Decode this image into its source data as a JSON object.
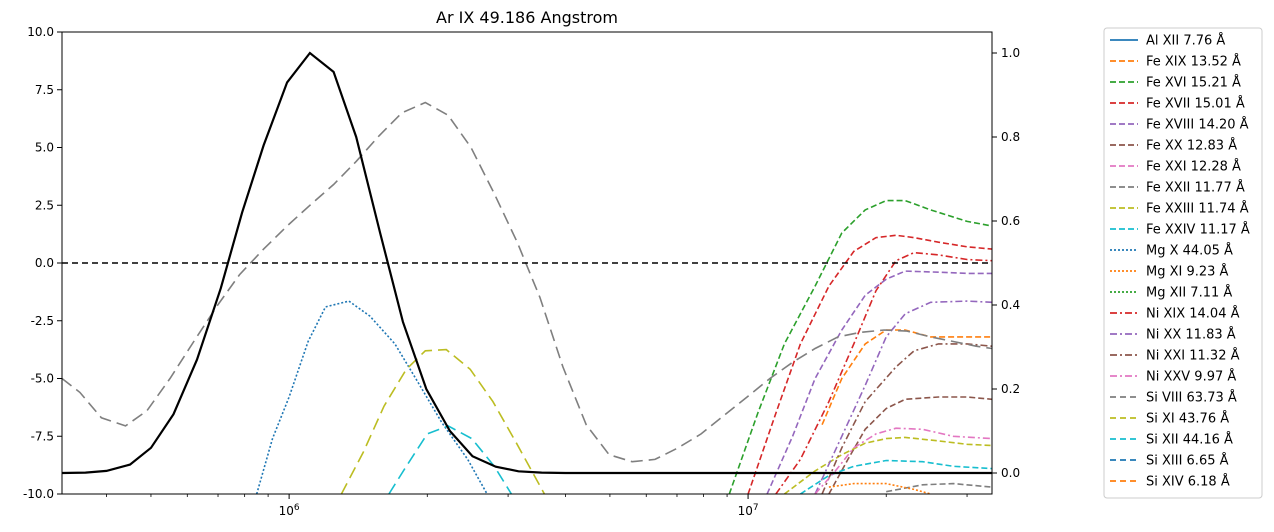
{
  "chart_data": {
    "type": "line",
    "title": "Ar IX 49.186 Angstrom",
    "xscale": "log",
    "xlim": [
      320000,
      34000000
    ],
    "x_ticks": [
      {
        "v": 1000000,
        "label": "10^6"
      },
      {
        "v": 10000000,
        "label": "10^7"
      }
    ],
    "left_axis": {
      "ylim": [
        -10,
        10
      ],
      "ticks": [
        "-10.0",
        "-7.5",
        "-5.0",
        "-2.5",
        "0.0",
        "2.5",
        "5.0",
        "7.5",
        "10.0"
      ]
    },
    "right_axis": {
      "ylim": [
        -0.05,
        1.05
      ],
      "ticks": [
        "0.0",
        "0.2",
        "0.4",
        "0.6",
        "0.8",
        "1.0"
      ]
    },
    "zero_line": {
      "y": 0,
      "style": "dashed",
      "color": "#000000"
    },
    "main_curve": {
      "axis": "right",
      "color": "#000000",
      "points": [
        [
          320000,
          0.0
        ],
        [
          360000,
          0.001
        ],
        [
          400000,
          0.005
        ],
        [
          450000,
          0.02
        ],
        [
          500000,
          0.06
        ],
        [
          560000,
          0.14
        ],
        [
          630000,
          0.27
        ],
        [
          710000,
          0.44
        ],
        [
          790000,
          0.62
        ],
        [
          880000,
          0.78
        ],
        [
          990000,
          0.93
        ],
        [
          1110000,
          1.0
        ],
        [
          1250000,
          0.955
        ],
        [
          1400000,
          0.8
        ],
        [
          1580000,
          0.57
        ],
        [
          1770000,
          0.36
        ],
        [
          1990000,
          0.2
        ],
        [
          2240000,
          0.1
        ],
        [
          2510000,
          0.04
        ],
        [
          2820000,
          0.015
        ],
        [
          3160000,
          0.004
        ],
        [
          3550000,
          0.001
        ],
        [
          4000000,
          0.0
        ],
        [
          34000000,
          0.0
        ]
      ]
    },
    "series": [
      {
        "name": "Al XII 7.76 Å",
        "color": "#1f77b4",
        "dash": "solid",
        "points": []
      },
      {
        "name": "Fe XIX 13.52 Å",
        "color": "#ff7f0e",
        "dash": "dashed",
        "points": [
          [
            14500000,
            -7.0
          ],
          [
            16000000,
            -5.0
          ],
          [
            18000000,
            -3.5
          ],
          [
            20000000,
            -2.9
          ],
          [
            22000000,
            -2.9
          ],
          [
            25000000,
            -3.2
          ],
          [
            30000000,
            -3.2
          ],
          [
            34000000,
            -3.2
          ]
        ]
      },
      {
        "name": "Fe XVI 15.21 Å",
        "color": "#2ca02c",
        "dash": "dashed",
        "points": [
          [
            9100000,
            -10.0
          ],
          [
            10500000,
            -6.5
          ],
          [
            12000000,
            -3.5
          ],
          [
            14000000,
            -1.0
          ],
          [
            16000000,
            1.3
          ],
          [
            18000000,
            2.3
          ],
          [
            20000000,
            2.7
          ],
          [
            22000000,
            2.7
          ],
          [
            25000000,
            2.3
          ],
          [
            30000000,
            1.8
          ],
          [
            34000000,
            1.6
          ]
        ]
      },
      {
        "name": "Fe XVII 15.01 Å",
        "color": "#d62728",
        "dash": "dashed",
        "points": [
          [
            10000000,
            -10.0
          ],
          [
            11500000,
            -6.5
          ],
          [
            13000000,
            -3.5
          ],
          [
            15000000,
            -1.0
          ],
          [
            17000000,
            0.5
          ],
          [
            19000000,
            1.1
          ],
          [
            21000000,
            1.2
          ],
          [
            23000000,
            1.1
          ],
          [
            26000000,
            0.9
          ],
          [
            30000000,
            0.7
          ],
          [
            34000000,
            0.6
          ]
        ]
      },
      {
        "name": "Fe XVIII 14.20 Å",
        "color": "#9467bd",
        "dash": "dashed",
        "points": [
          [
            11000000,
            -10.0
          ],
          [
            12500000,
            -7.5
          ],
          [
            14000000,
            -5.0
          ],
          [
            16000000,
            -2.9
          ],
          [
            18000000,
            -1.4
          ],
          [
            20000000,
            -0.7
          ],
          [
            22000000,
            -0.35
          ],
          [
            26000000,
            -0.4
          ],
          [
            30000000,
            -0.45
          ],
          [
            34000000,
            -0.45
          ]
        ]
      },
      {
        "name": "Fe XX 12.83 Å",
        "color": "#8c564b",
        "dash": "dashed",
        "points": [
          [
            15000000,
            -10.0
          ],
          [
            16500000,
            -8.5
          ],
          [
            18000000,
            -7.2
          ],
          [
            20000000,
            -6.3
          ],
          [
            22000000,
            -5.9
          ],
          [
            26000000,
            -5.8
          ],
          [
            30000000,
            -5.8
          ],
          [
            34000000,
            -5.9
          ]
        ]
      },
      {
        "name": "Fe XXI 12.28 Å",
        "color": "#e377c2",
        "dash": "dashed",
        "points": []
      },
      {
        "name": "Fe XXII 11.77 Å",
        "color": "#7f7f7f",
        "dash": "dashed",
        "points": [
          [
            20000000,
            -9.9
          ],
          [
            24000000,
            -9.6
          ],
          [
            28000000,
            -9.55
          ],
          [
            34000000,
            -9.7
          ]
        ]
      },
      {
        "name": "Fe XXIII 11.74 Å",
        "color": "#bcbd22",
        "dash": "dashed",
        "points": [
          [
            12000000,
            -10.0
          ],
          [
            14000000,
            -9.0
          ],
          [
            16000000,
            -8.3
          ],
          [
            18000000,
            -7.8
          ],
          [
            20000000,
            -7.6
          ],
          [
            22000000,
            -7.55
          ],
          [
            26000000,
            -7.7
          ],
          [
            30000000,
            -7.85
          ],
          [
            34000000,
            -7.9
          ]
        ]
      },
      {
        "name": "Fe XXIV 11.17 Å",
        "color": "#17becf",
        "dash": "dashed",
        "points": [
          [
            13000000,
            -10.0
          ],
          [
            15000000,
            -9.2
          ],
          [
            17000000,
            -8.8
          ],
          [
            20000000,
            -8.55
          ],
          [
            24000000,
            -8.6
          ],
          [
            28000000,
            -8.8
          ],
          [
            34000000,
            -8.9
          ]
        ]
      },
      {
        "name": "Mg X 44.05 Å",
        "color": "#1f77b4",
        "dash": "dotted",
        "points": [
          [
            850000,
            -10.0
          ],
          [
            920000,
            -7.6
          ],
          [
            1000000,
            -5.8
          ],
          [
            1100000,
            -3.4
          ],
          [
            1200000,
            -1.9
          ],
          [
            1350000,
            -1.65
          ],
          [
            1500000,
            -2.3
          ],
          [
            1700000,
            -3.5
          ],
          [
            1900000,
            -5.1
          ],
          [
            2150000,
            -6.9
          ],
          [
            2450000,
            -8.5
          ],
          [
            2700000,
            -10.0
          ]
        ]
      },
      {
        "name": "Mg XI 9.23 Å",
        "color": "#ff7f0e",
        "dash": "dotted",
        "points": [
          [
            15000000,
            -9.7
          ],
          [
            17000000,
            -9.55
          ],
          [
            20000000,
            -9.55
          ],
          [
            23000000,
            -9.8
          ],
          [
            25000000,
            -10.0
          ]
        ]
      },
      {
        "name": "Mg XII 7.11 Å",
        "color": "#2ca02c",
        "dash": "dotted",
        "points": []
      },
      {
        "name": "Ni XIX 14.04 Å",
        "color": "#d62728",
        "dash": "dashdot",
        "points": [
          [
            11500000,
            -10.0
          ],
          [
            13000000,
            -8.5
          ],
          [
            15000000,
            -6.0
          ],
          [
            17000000,
            -3.5
          ],
          [
            19000000,
            -1.2
          ],
          [
            21000000,
            0.1
          ],
          [
            23000000,
            0.45
          ],
          [
            26000000,
            0.35
          ],
          [
            30000000,
            0.15
          ],
          [
            34000000,
            0.1
          ]
        ]
      },
      {
        "name": "Ni XX 11.83 Å",
        "color": "#9467bd",
        "dash": "dashdot",
        "points": [
          [
            14000000,
            -10.0
          ],
          [
            16000000,
            -7.5
          ],
          [
            18000000,
            -5.3
          ],
          [
            20000000,
            -3.2
          ],
          [
            22000000,
            -2.2
          ],
          [
            25000000,
            -1.7
          ],
          [
            30000000,
            -1.65
          ],
          [
            34000000,
            -1.7
          ]
        ]
      },
      {
        "name": "Ni XXI 11.32 Å",
        "color": "#8c564b",
        "dash": "dashdot",
        "points": [
          [
            14500000,
            -10.0
          ],
          [
            16000000,
            -8.0
          ],
          [
            18000000,
            -6.0
          ],
          [
            21000000,
            -4.5
          ],
          [
            23000000,
            -3.8
          ],
          [
            26000000,
            -3.5
          ],
          [
            30000000,
            -3.5
          ],
          [
            34000000,
            -3.6
          ]
        ]
      },
      {
        "name": "Ni XXV 9.97 Å",
        "color": "#e377c2",
        "dash": "dashdot",
        "points": [
          [
            14000000,
            -10.0
          ],
          [
            15500000,
            -9.0
          ],
          [
            17000000,
            -8.0
          ],
          [
            19000000,
            -7.4
          ],
          [
            21000000,
            -7.15
          ],
          [
            24000000,
            -7.2
          ],
          [
            28000000,
            -7.5
          ],
          [
            34000000,
            -7.6
          ]
        ]
      },
      {
        "name": "Si VIII 63.73 Å",
        "color": "#7f7f7f",
        "dash": "longdash",
        "points": [
          [
            320000,
            -5.0
          ],
          [
            350000,
            -5.6
          ],
          [
            390000,
            -6.7
          ],
          [
            440000,
            -7.05
          ],
          [
            490000,
            -6.4
          ],
          [
            550000,
            -5.0
          ],
          [
            620000,
            -3.4
          ],
          [
            700000,
            -1.8
          ],
          [
            780000,
            -0.5
          ],
          [
            880000,
            0.6
          ],
          [
            990000,
            1.6
          ],
          [
            1110000,
            2.5
          ],
          [
            1250000,
            3.4
          ],
          [
            1400000,
            4.4
          ],
          [
            1570000,
            5.5
          ],
          [
            1760000,
            6.5
          ],
          [
            1980000,
            6.95
          ],
          [
            2220000,
            6.4
          ],
          [
            2490000,
            5.0
          ],
          [
            2800000,
            3.0
          ],
          [
            3140000,
            0.9
          ],
          [
            3520000,
            -1.5
          ],
          [
            3950000,
            -4.5
          ],
          [
            4440000,
            -7.0
          ],
          [
            4980000,
            -8.3
          ],
          [
            5590000,
            -8.6
          ],
          [
            6270000,
            -8.5
          ],
          [
            7040000,
            -8.0
          ],
          [
            7900000,
            -7.4
          ],
          [
            8860000,
            -6.6
          ],
          [
            9950000,
            -5.8
          ],
          [
            11160000,
            -5.0
          ],
          [
            12500000,
            -4.3
          ],
          [
            14000000,
            -3.7
          ],
          [
            15700000,
            -3.2
          ],
          [
            17600000,
            -3.0
          ],
          [
            19800000,
            -2.9
          ],
          [
            22200000,
            -2.95
          ],
          [
            25000000,
            -3.2
          ],
          [
            28000000,
            -3.4
          ],
          [
            31400000,
            -3.6
          ],
          [
            34000000,
            -3.7
          ]
        ]
      },
      {
        "name": "Si XI 43.76 Å",
        "color": "#bcbd22",
        "dash": "longdash",
        "points": [
          [
            1300000,
            -10.0
          ],
          [
            1450000,
            -8.2
          ],
          [
            1610000,
            -6.2
          ],
          [
            1800000,
            -4.6
          ],
          [
            1980000,
            -3.8
          ],
          [
            2200000,
            -3.75
          ],
          [
            2480000,
            -4.6
          ],
          [
            2780000,
            -6.0
          ],
          [
            3130000,
            -7.8
          ],
          [
            3400000,
            -9.1
          ],
          [
            3600000,
            -10.0
          ]
        ]
      },
      {
        "name": "Si XII 44.16 Å",
        "color": "#17becf",
        "dash": "longdash",
        "points": [
          [
            1650000,
            -10.0
          ],
          [
            1800000,
            -8.8
          ],
          [
            2000000,
            -7.4
          ],
          [
            2220000,
            -7.05
          ],
          [
            2500000,
            -7.6
          ],
          [
            2800000,
            -8.8
          ],
          [
            3050000,
            -10.0
          ]
        ]
      },
      {
        "name": "Si XIII 6.65 Å",
        "color": "#1f77b4",
        "dash": "longdash",
        "points": []
      },
      {
        "name": "Si XIV 6.18 Å",
        "color": "#ff7f0e",
        "dash": "longdash",
        "points": []
      }
    ],
    "legend": {
      "position": "outside-right"
    }
  }
}
